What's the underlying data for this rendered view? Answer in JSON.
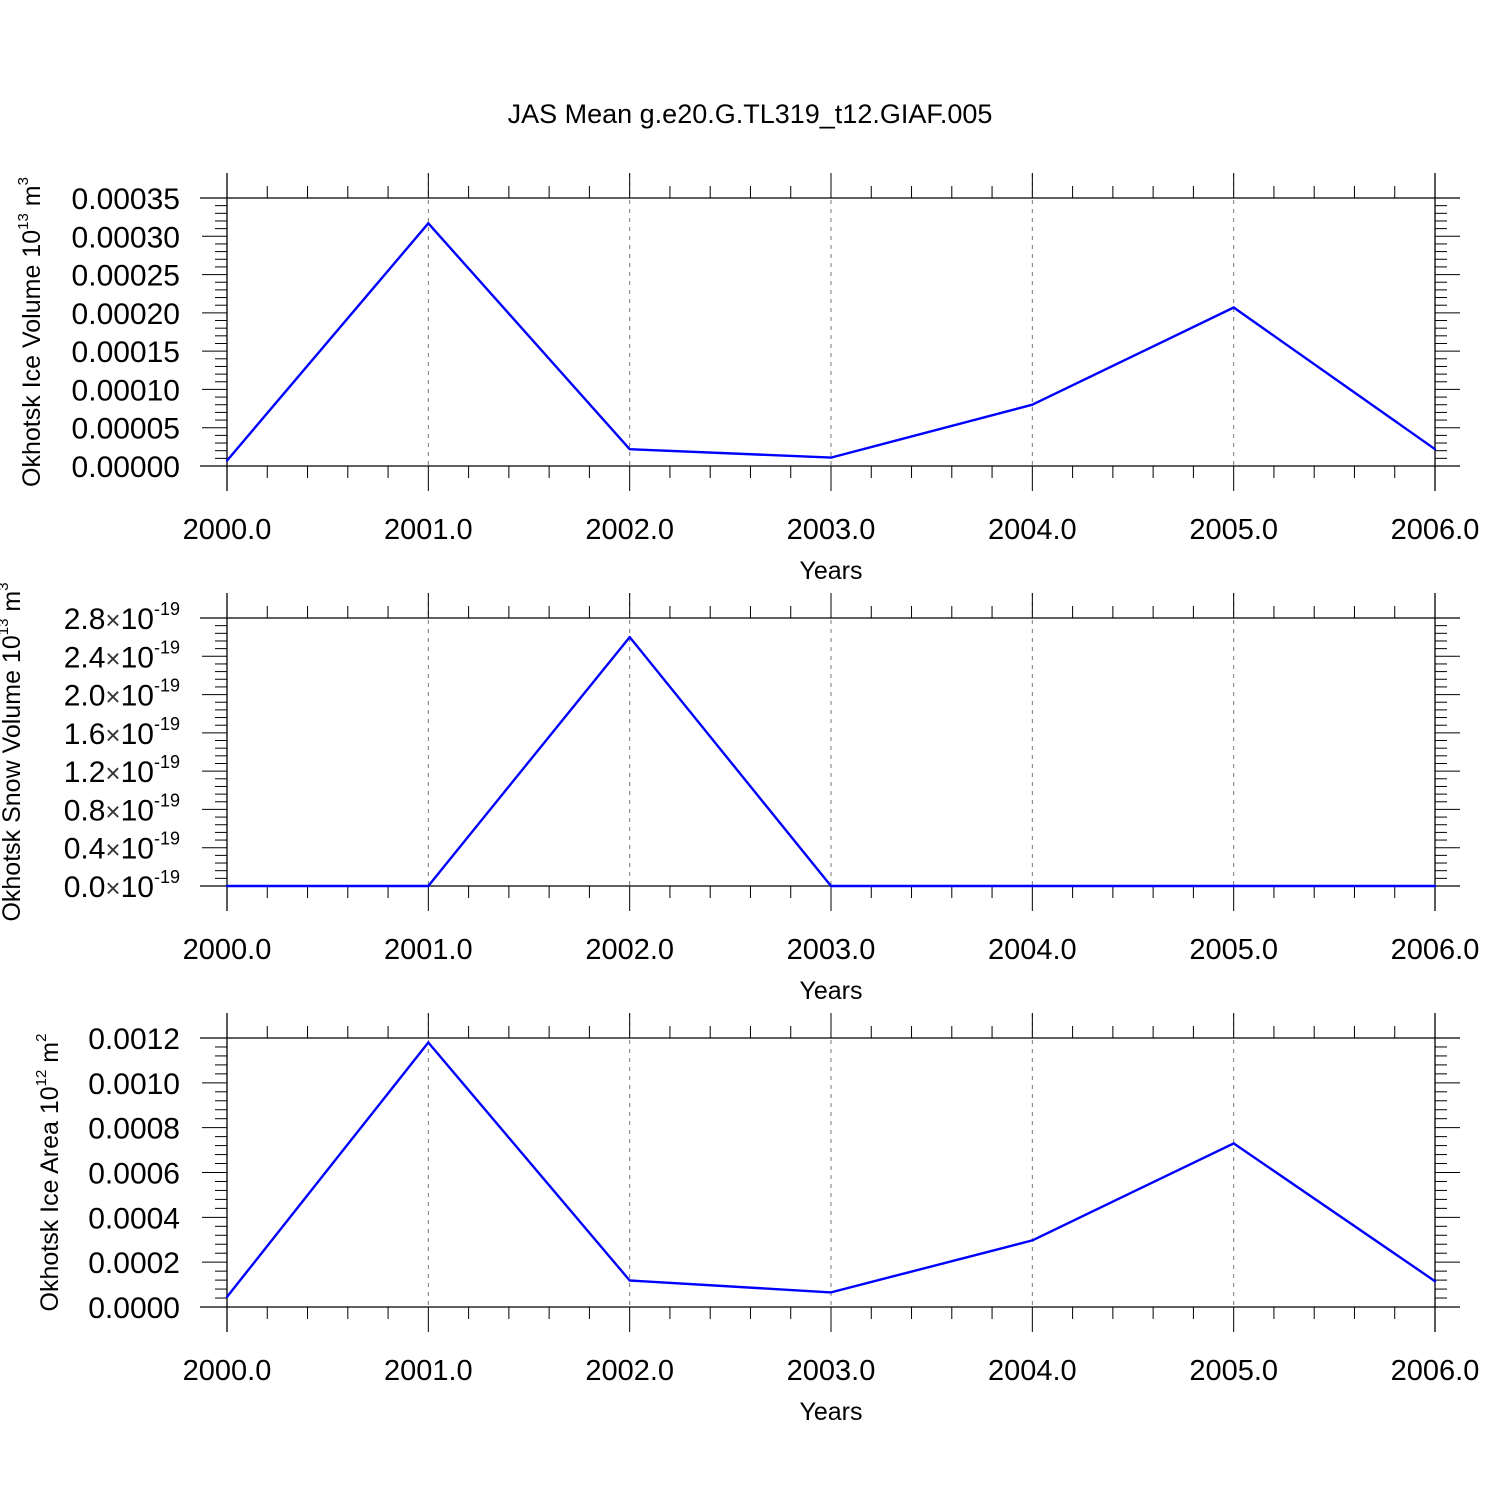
{
  "figure": {
    "title": "JAS Mean g.e20.G.TL319_t12.GIAF.005"
  },
  "chart_data": [
    {
      "type": "line",
      "ylabel_main": "Okhotsk Ice Volume 10",
      "ylabel_exp": "13",
      "ylabel_unit": " m",
      "ylabel_unit_exp": "3",
      "xlabel": "Years",
      "x": [
        2000,
        2001,
        2002,
        2003,
        2004,
        2005,
        2006
      ],
      "xlim": [
        2000,
        2006
      ],
      "x_tick_labels": [
        "2000.0",
        "2001.0",
        "2002.0",
        "2003.0",
        "2004.0",
        "2005.0",
        "2006.0"
      ],
      "ylim": [
        0,
        0.00035
      ],
      "y_ticks": [
        0,
        5e-05,
        0.0001,
        0.00015,
        0.0002,
        0.00025,
        0.0003,
        0.00035
      ],
      "y_tick_labels": [
        "0.00000",
        "0.00005",
        "0.00010",
        "0.00015",
        "0.00020",
        "0.00025",
        "0.00030",
        "0.00035"
      ],
      "grid_x": true,
      "series": [
        {
          "values": [
            7e-06,
            0.000317,
            2.2e-05,
            1.1e-05,
            8e-05,
            0.000207,
            2.2e-05
          ],
          "color": "#0000ff"
        }
      ]
    },
    {
      "type": "line",
      "ylabel_main": "Okhotsk Snow Volume 10",
      "ylabel_exp": "13",
      "ylabel_unit": " m",
      "ylabel_unit_exp": "3",
      "xlabel": "Years",
      "x": [
        2000,
        2001,
        2002,
        2003,
        2004,
        2005,
        2006
      ],
      "xlim": [
        2000,
        2006
      ],
      "x_tick_labels": [
        "2000.0",
        "2001.0",
        "2002.0",
        "2003.0",
        "2004.0",
        "2005.0",
        "2006.0"
      ],
      "ylim": [
        0,
        2.8e-19
      ],
      "y_ticks": [
        0,
        4e-20,
        8e-20,
        1.2e-19,
        1.6e-19,
        2e-19,
        2.4e-19,
        2.8e-19
      ],
      "y_tick_labels": [
        {
          "mantissa": "0.0",
          "times": "×",
          "base": "10",
          "exp": "-19"
        },
        {
          "mantissa": "0.4",
          "times": "×",
          "base": "10",
          "exp": "-19"
        },
        {
          "mantissa": "0.8",
          "times": "×",
          "base": "10",
          "exp": "-19"
        },
        {
          "mantissa": "1.2",
          "times": "×",
          "base": "10",
          "exp": "-19"
        },
        {
          "mantissa": "1.6",
          "times": "×",
          "base": "10",
          "exp": "-19"
        },
        {
          "mantissa": "2.0",
          "times": "×",
          "base": "10",
          "exp": "-19"
        },
        {
          "mantissa": "2.4",
          "times": "×",
          "base": "10",
          "exp": "-19"
        },
        {
          "mantissa": "2.8",
          "times": "×",
          "base": "10",
          "exp": "-19"
        }
      ],
      "grid_x": true,
      "series": [
        {
          "values": [
            0,
            0,
            2.6e-19,
            0,
            0,
            0,
            0
          ],
          "color": "#0000ff"
        }
      ]
    },
    {
      "type": "line",
      "ylabel_main": "Okhotsk Ice Area 10",
      "ylabel_exp": "12",
      "ylabel_unit": " m",
      "ylabel_unit_exp": "2",
      "xlabel": "Years",
      "x": [
        2000,
        2001,
        2002,
        2003,
        2004,
        2005,
        2006
      ],
      "xlim": [
        2000,
        2006
      ],
      "x_tick_labels": [
        "2000.0",
        "2001.0",
        "2002.0",
        "2003.0",
        "2004.0",
        "2005.0",
        "2006.0"
      ],
      "ylim": [
        0,
        0.0012
      ],
      "y_ticks": [
        0,
        0.0002,
        0.0004,
        0.0006,
        0.0008,
        0.001,
        0.0012
      ],
      "y_tick_labels": [
        "0.0000",
        "0.0002",
        "0.0004",
        "0.0006",
        "0.0008",
        "0.0010",
        "0.0012"
      ],
      "grid_x": true,
      "series": [
        {
          "values": [
            4.5e-05,
            0.00118,
            0.000118,
            6.5e-05,
            0.000297,
            0.00073,
            0.000115
          ],
          "color": "#0000ff"
        }
      ]
    }
  ]
}
